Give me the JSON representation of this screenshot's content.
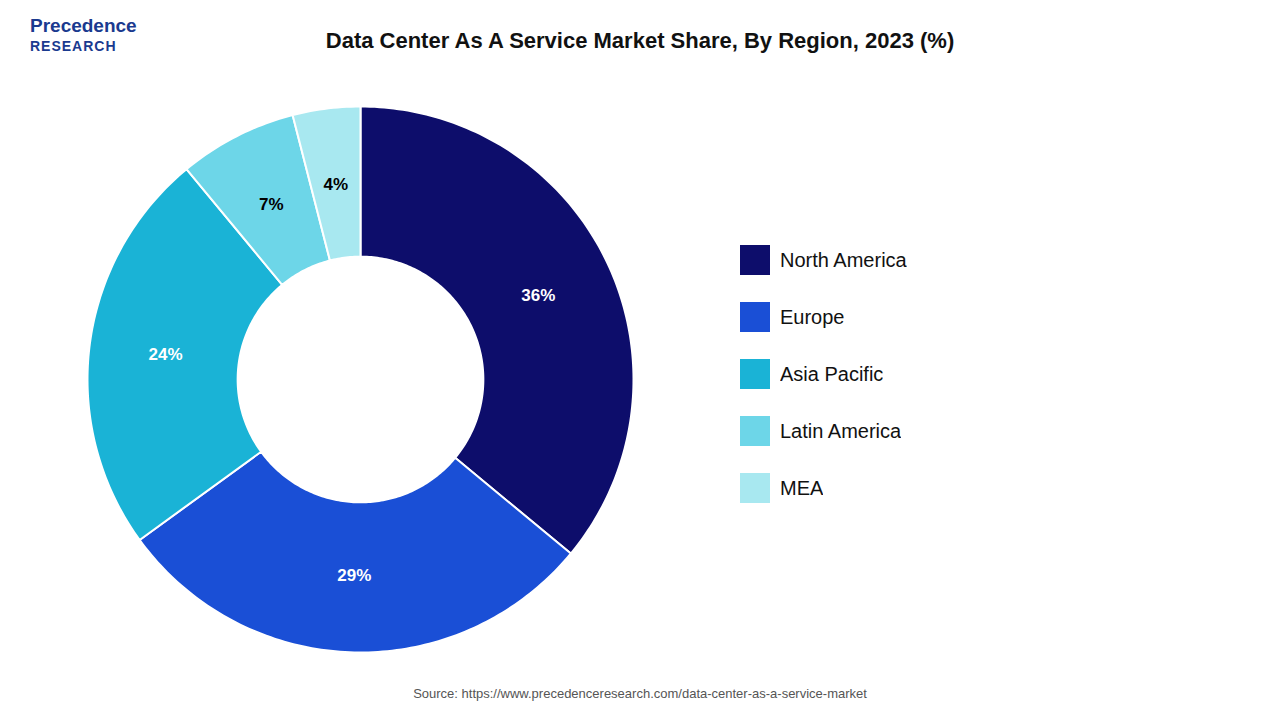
{
  "chart_data": {
    "type": "pie",
    "title": "Data Center As A Service Market Share, By Region, 2023 (%)",
    "categories": [
      "North America",
      "Europe",
      "Asia Pacific",
      "Latin America",
      "MEA"
    ],
    "values": [
      36,
      29,
      24,
      7,
      4
    ],
    "value_labels": [
      "36%",
      "29%",
      "24%",
      "7%",
      "4%"
    ],
    "colors": [
      "#0d0d6b",
      "#1a4fd6",
      "#1ab3d6",
      "#6dd6e8",
      "#a8e8f0"
    ],
    "data_labels": true,
    "legend": "right",
    "caption": "Source: https://www.precedenceresearch.com/data-center-as-a-service-market",
    "annotations": [
      {
        "text": "Precedence",
        "color": "#1a3a8f"
      },
      {
        "text": "RESEARCH",
        "color": "#1a3a8f"
      }
    ]
  }
}
